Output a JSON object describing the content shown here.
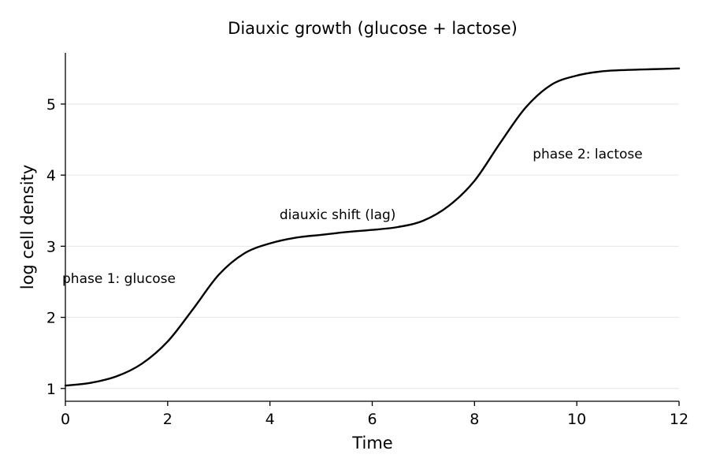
{
  "chart_data": {
    "type": "line",
    "title": "Diauxic growth (glucose + lactose)",
    "xlabel": "Time",
    "ylabel": "log cell density",
    "xlim": [
      0,
      12
    ],
    "ylim": [
      0.82,
      5.72
    ],
    "xticks": [
      0,
      2,
      4,
      6,
      8,
      10,
      12
    ],
    "yticks": [
      1,
      2,
      3,
      4,
      5
    ],
    "grid": "horizontal",
    "series": [
      {
        "color": "#000000",
        "x": [
          0,
          0.5,
          1,
          1.5,
          2,
          2.5,
          3,
          3.5,
          4,
          4.5,
          5,
          5.5,
          6,
          6.5,
          7,
          7.5,
          8,
          8.5,
          9,
          9.5,
          10,
          10.5,
          11,
          11.5,
          12
        ],
        "y": [
          1.04,
          1.08,
          1.17,
          1.35,
          1.66,
          2.12,
          2.6,
          2.9,
          3.04,
          3.12,
          3.16,
          3.2,
          3.23,
          3.27,
          3.36,
          3.57,
          3.92,
          4.45,
          4.95,
          5.27,
          5.4,
          5.46,
          5.48,
          5.49,
          5.5
        ]
      }
    ],
    "annotations": [
      {
        "text": "phase 1: glucose",
        "x": 0,
        "y": 2.55
      },
      {
        "text": "diauxic shift (lag)",
        "x": 4.25,
        "y": 3.45
      },
      {
        "text": "phase 2: lactose",
        "x": 9.2,
        "y": 4.3
      }
    ]
  }
}
